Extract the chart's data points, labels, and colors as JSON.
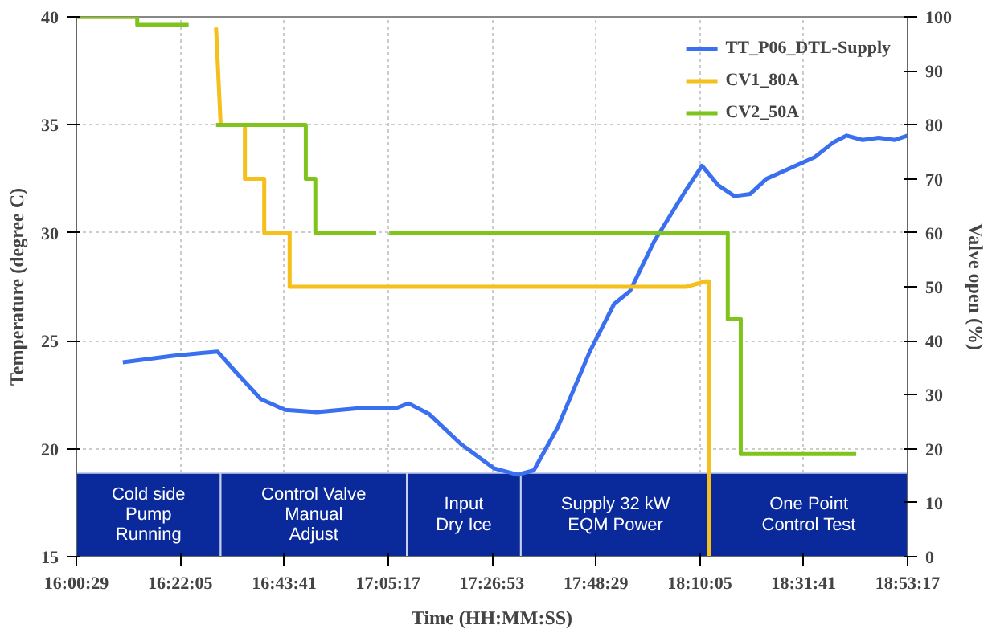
{
  "chart_data": {
    "type": "line",
    "xlabel": "Time (HH:MM:SS)",
    "ylabel": "Temperature (degree C)",
    "y2label": "Valve open (%)",
    "xlim": [
      16.00806,
      18.88806
    ],
    "xticks": [
      {
        "value": 16.00806,
        "label": "16:00:29"
      },
      {
        "value": 16.36806,
        "label": "16:22:05"
      },
      {
        "value": 16.72806,
        "label": "16:43:41"
      },
      {
        "value": 17.08806,
        "label": "17:05:17"
      },
      {
        "value": 17.44806,
        "label": "17:26:53"
      },
      {
        "value": 17.80806,
        "label": "17:48:29"
      },
      {
        "value": 18.16806,
        "label": "18:10:05"
      },
      {
        "value": 18.52806,
        "label": "18:31:41"
      },
      {
        "value": 18.88806,
        "label": "18:53:17"
      }
    ],
    "ylim": [
      15,
      40
    ],
    "yticks": [
      15,
      20,
      25,
      30,
      35,
      40
    ],
    "y2lim": [
      0,
      100
    ],
    "y2ticks": [
      0,
      10,
      20,
      30,
      40,
      50,
      60,
      70,
      80,
      90,
      100
    ],
    "grid": true,
    "legend": "top right",
    "line_style": "solid",
    "series": [
      {
        "name": "TT_P06_DTL-Supply",
        "color": "#3a6ff0",
        "x": [
          16.169,
          16.342,
          16.497,
          16.564,
          16.647,
          16.731,
          16.842,
          17.009,
          17.12,
          17.159,
          17.231,
          17.342,
          17.454,
          17.537,
          17.593,
          17.676,
          17.787,
          17.871,
          17.926,
          18.01,
          18.121,
          18.176,
          18.232,
          18.288,
          18.343,
          18.399,
          18.482,
          18.566,
          18.632,
          18.677,
          18.732,
          18.788,
          18.844,
          18.888
        ],
        "values": [
          24.0,
          24.3,
          24.5,
          23.5,
          22.3,
          21.8,
          21.7,
          21.9,
          21.9,
          22.1,
          21.6,
          20.2,
          19.1,
          18.8,
          19.0,
          21.0,
          24.5,
          26.7,
          27.3,
          29.6,
          32.0,
          33.1,
          32.2,
          31.7,
          31.8,
          32.5,
          33.0,
          33.5,
          34.2,
          34.5,
          34.3,
          34.4,
          34.3,
          34.5
        ]
      },
      {
        "name": "CV1_80A",
        "color": "#f5bf1c",
        "axis": "y2",
        "x": [
          16.00806,
          16.219,
          16.3,
          16.492,
          16.508,
          16.592,
          16.592,
          16.659,
          16.659,
          16.747,
          16.747,
          18.121,
          18.188,
          18.199,
          18.199
        ],
        "values": [
          100,
          100,
          null,
          98,
          80,
          80,
          70,
          70,
          60,
          60,
          50,
          50,
          51,
          51,
          0
        ]
      },
      {
        "name": "CV2_50A",
        "color": "#7fc41c",
        "axis": "y2",
        "x": [
          16.00806,
          16.219,
          16.219,
          16.397,
          16.45,
          16.492,
          16.803,
          16.803,
          16.836,
          16.836,
          17.047,
          17.07,
          17.092,
          18.265,
          18.265,
          18.31,
          18.31,
          18.71
        ],
        "values": [
          100,
          100,
          98.5,
          98.5,
          null,
          80,
          80,
          70,
          70,
          60,
          60,
          null,
          60,
          60,
          44,
          44,
          19,
          19
        ]
      }
    ],
    "bands": [
      {
        "axis": "x",
        "from": 16.00806,
        "to": 16.508,
        "label": "Cold side\nPump\nRunning",
        "color": "#0a2a9c"
      },
      {
        "axis": "x",
        "from": 16.508,
        "to": 17.153,
        "label": "Control Valve\nManual\nAdjust",
        "color": "#0a2a9c"
      },
      {
        "axis": "x",
        "from": 17.153,
        "to": 17.548,
        "label": "Input\nDry Ice",
        "color": "#0a2a9c"
      },
      {
        "axis": "x",
        "from": 17.548,
        "to": 18.204,
        "label": "Supply 32 kW\nEQM Power",
        "color": "#0a2a9c"
      },
      {
        "axis": "x",
        "from": 18.204,
        "to": 18.888,
        "label": "One Point\nControl Test",
        "color": "#0a2a9c"
      }
    ]
  }
}
